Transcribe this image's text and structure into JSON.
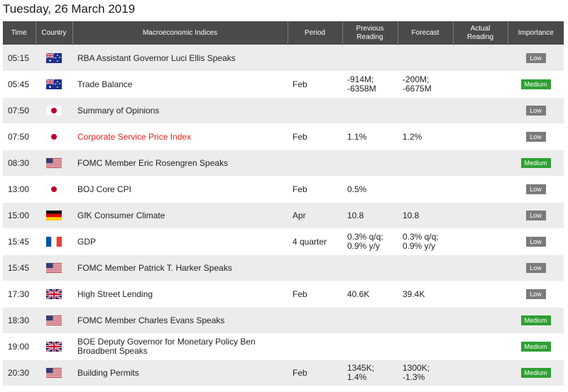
{
  "page_title": "Tuesday, 26 March 2019",
  "headers": {
    "time": "Time",
    "country": "Country",
    "indices": "Macroeconomic Indices",
    "period": "Period",
    "previous_l1": "Previous",
    "previous_l2": "Reading",
    "forecast": "Forecast",
    "actual_l1": "Actual",
    "actual_l2": "Reading",
    "importance": "Importance"
  },
  "colors": {
    "header_bg": "#4a4a4a",
    "row_alt": "#ececec",
    "low": "#7b7b7b",
    "medium": "#2ea032",
    "highlight": "#e0201b"
  },
  "rows": [
    {
      "time": "05:15",
      "flag": "australia-flag-icon",
      "event": "RBA Assistant Governor Luci Ellis Speaks",
      "period": "",
      "prev1": "",
      "prev2": "",
      "fc1": "",
      "fc2": "",
      "actual": "",
      "importance": "Low"
    },
    {
      "time": "05:45",
      "flag": "australia-flag-icon",
      "event": "Trade Balance",
      "period": "Feb",
      "prev1": "-914M;",
      "prev2": "-6358M",
      "fc1": "-200M;",
      "fc2": "-6675M",
      "actual": "",
      "importance": "Medium"
    },
    {
      "time": "07:50",
      "flag": "japan-flag-icon",
      "event": "Summary of Opinions",
      "period": "",
      "prev1": "",
      "prev2": "",
      "fc1": "",
      "fc2": "",
      "actual": "",
      "importance": "Low"
    },
    {
      "time": "07:50",
      "flag": "japan-flag-icon",
      "event": "Corporate Service Price Index",
      "period": "Feb",
      "prev1": "1.1%",
      "prev2": "",
      "fc1": "1.2%",
      "fc2": "",
      "actual": "",
      "importance": "Low"
    },
    {
      "time": "08:30",
      "flag": "usa-flag-icon",
      "event": "FOMC Member Eric Rosengren Speaks",
      "period": "",
      "prev1": "",
      "prev2": "",
      "fc1": "",
      "fc2": "",
      "actual": "",
      "importance": "Medium"
    },
    {
      "time": "13:00",
      "flag": "japan-flag-icon",
      "event": "BOJ Core CPI",
      "period": "Feb",
      "prev1": "0.5%",
      "prev2": "",
      "fc1": "",
      "fc2": "",
      "actual": "",
      "importance": "Low"
    },
    {
      "time": "15:00",
      "flag": "germany-flag-icon",
      "event": "GfK Consumer Climate",
      "period": "Apr",
      "prev1": "10.8",
      "prev2": "",
      "fc1": "10.8",
      "fc2": "",
      "actual": "",
      "importance": "Low"
    },
    {
      "time": "15:45",
      "flag": "france-flag-icon",
      "event": "GDP",
      "period": "4 quarter",
      "prev1": "0.3% q/q;",
      "prev2": "0.9% y/y",
      "fc1": "0.3% q/q;",
      "fc2": "0.9% y/y",
      "actual": "",
      "importance": "Low"
    },
    {
      "time": "15:45",
      "flag": "usa-flag-icon",
      "event": "FOMC Member Patrick T. Harker Speaks",
      "period": "",
      "prev1": "",
      "prev2": "",
      "fc1": "",
      "fc2": "",
      "actual": "",
      "importance": "Low"
    },
    {
      "time": "17:30",
      "flag": "uk-flag-icon",
      "event": "High Street Lending",
      "period": "Feb",
      "prev1": "40.6K",
      "prev2": "",
      "fc1": "39.4K",
      "fc2": "",
      "actual": "",
      "importance": "Low"
    },
    {
      "time": "18:30",
      "flag": "usa-flag-icon",
      "event": "FOMC Member Charles Evans Speaks",
      "period": "",
      "prev1": "",
      "prev2": "",
      "fc1": "",
      "fc2": "",
      "actual": "",
      "importance": "Medium"
    },
    {
      "time": "19:00",
      "flag": "uk-flag-icon",
      "event": "BOE Deputy Governor for Monetary Policy Ben Broadbent Speaks",
      "period": "",
      "prev1": "",
      "prev2": "",
      "fc1": "",
      "fc2": "",
      "actual": "",
      "importance": "Medium"
    },
    {
      "time": "20:30",
      "flag": "usa-flag-icon",
      "event": "Building Permits",
      "period": "Feb",
      "prev1": "1345K;",
      "prev2": "1.4%",
      "fc1": "1300K;",
      "fc2": "-1.3%",
      "actual": "",
      "importance": "Medium"
    }
  ]
}
